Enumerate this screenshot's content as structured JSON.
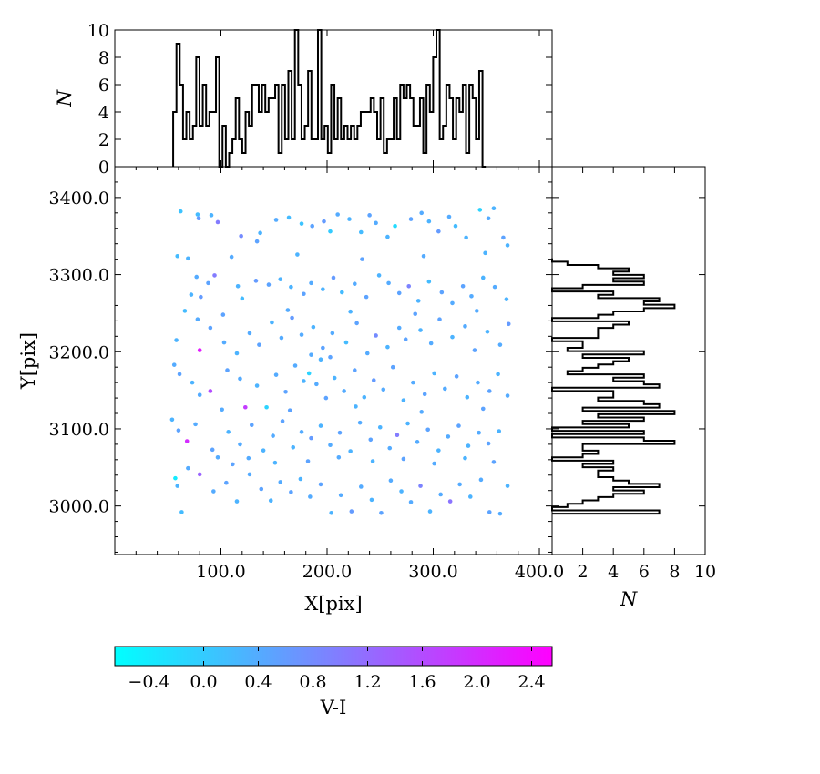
{
  "chart_data": {
    "type": "scatter",
    "xlabel": "X[pix]",
    "ylabel": "Y[pix]",
    "xlim": [
      0,
      412
    ],
    "ylim": [
      2937,
      3440
    ],
    "x_ticks": [
      "100.0",
      "200.0",
      "300.0",
      "400.0"
    ],
    "y_ticks": [
      "3000.0",
      "3100.0",
      "3200.0",
      "3300.0",
      "3400.0"
    ],
    "colorbar": {
      "label": "V-I",
      "range": [
        -0.65,
        2.55
      ],
      "ticks": [
        "−0.4",
        "0.0",
        "0.4",
        "0.8",
        "1.2",
        "1.6",
        "2.0",
        "2.4"
      ],
      "colors": [
        "#00ffff",
        "#ff00ff"
      ]
    },
    "hist_top": {
      "ylabel": "N",
      "ylim": [
        0,
        10
      ],
      "ticks": [
        "0",
        "2",
        "4",
        "6",
        "8",
        "10"
      ],
      "bin_start": 55,
      "bin_width": 3.1,
      "counts": [
        4,
        9,
        6,
        2,
        4,
        2,
        3,
        8,
        3,
        6,
        3,
        4,
        4,
        8,
        0,
        3,
        0,
        1,
        2,
        5,
        2,
        1,
        4,
        3,
        6,
        6,
        4,
        6,
        4,
        5,
        5,
        6,
        1,
        6,
        2,
        7,
        2,
        10,
        6,
        2,
        3,
        7,
        2,
        2,
        10,
        2,
        3,
        1,
        6,
        2,
        5,
        2,
        3,
        2,
        3,
        2,
        3,
        4,
        4,
        4,
        5,
        4,
        2,
        5,
        1,
        2,
        2,
        5,
        2,
        6,
        5,
        6,
        5,
        3,
        3,
        5,
        1,
        6,
        4,
        8,
        10,
        2,
        3,
        6,
        5,
        2,
        5,
        4,
        6,
        1,
        6,
        5,
        2,
        7,
        0
      ]
    },
    "hist_right": {
      "xlabel": "N",
      "xlim": [
        0,
        10
      ],
      "ticks": [
        "2",
        "4",
        "6",
        "8",
        "10"
      ],
      "bin_start": 2990,
      "bin_width": 4.3,
      "counts": [
        7,
        0,
        1,
        2,
        3,
        4,
        6,
        4,
        7,
        5,
        4,
        3,
        3,
        4,
        2,
        4,
        0,
        2,
        3,
        2,
        2,
        8,
        6,
        0,
        6,
        0,
        5,
        2,
        6,
        3,
        8,
        2,
        7,
        6,
        3,
        4,
        4,
        0,
        7,
        6,
        4,
        6,
        1,
        2,
        3,
        4,
        5,
        2,
        6,
        1,
        2,
        2,
        0,
        3,
        3,
        3,
        4,
        5,
        0,
        3,
        4,
        6,
        8,
        6,
        7,
        3,
        4,
        0,
        2,
        6,
        4,
        6,
        4,
        5,
        3,
        1,
        0,
        0,
        0,
        0,
        0,
        0,
        0,
        0,
        0,
        0,
        0,
        0,
        0,
        0,
        0,
        0,
        0,
        0,
        0,
        0
      ]
    },
    "points": [
      {
        "x": 62,
        "y": 3382,
        "c": 0.1
      },
      {
        "x": 78,
        "y": 3378,
        "c": 0.2
      },
      {
        "x": 79,
        "y": 3373,
        "c": 0.6
      },
      {
        "x": 91,
        "y": 3377,
        "c": 0.3
      },
      {
        "x": 97,
        "y": 3368,
        "c": 1.0
      },
      {
        "x": 59,
        "y": 3324,
        "c": 0.2
      },
      {
        "x": 69,
        "y": 3321,
        "c": 0.3
      },
      {
        "x": 119,
        "y": 3350,
        "c": 0.8
      },
      {
        "x": 137,
        "y": 3354,
        "c": 0.3
      },
      {
        "x": 134,
        "y": 3343,
        "c": 0.5
      },
      {
        "x": 152,
        "y": 3371,
        "c": 0.4
      },
      {
        "x": 164,
        "y": 3374,
        "c": 0.2
      },
      {
        "x": 176,
        "y": 3366,
        "c": 0.1
      },
      {
        "x": 186,
        "y": 3363,
        "c": 0.5
      },
      {
        "x": 197,
        "y": 3369,
        "c": 0.6
      },
      {
        "x": 203,
        "y": 3356,
        "c": 0.0
      },
      {
        "x": 210,
        "y": 3378,
        "c": 0.4
      },
      {
        "x": 221,
        "y": 3372,
        "c": 0.3
      },
      {
        "x": 232,
        "y": 3355,
        "c": 0.2
      },
      {
        "x": 240,
        "y": 3377,
        "c": 0.5
      },
      {
        "x": 246,
        "y": 3367,
        "c": 0.4
      },
      {
        "x": 257,
        "y": 3349,
        "c": 0.3
      },
      {
        "x": 264,
        "y": 3363,
        "c": -0.2
      },
      {
        "x": 279,
        "y": 3372,
        "c": 0.5
      },
      {
        "x": 289,
        "y": 3380,
        "c": 0.4
      },
      {
        "x": 296,
        "y": 3369,
        "c": 0.3
      },
      {
        "x": 305,
        "y": 3356,
        "c": 0.6
      },
      {
        "x": 315,
        "y": 3375,
        "c": 0.4
      },
      {
        "x": 321,
        "y": 3363,
        "c": 0.2
      },
      {
        "x": 331,
        "y": 3348,
        "c": 0.3
      },
      {
        "x": 344,
        "y": 3384,
        "c": -0.1
      },
      {
        "x": 352,
        "y": 3373,
        "c": 0.4
      },
      {
        "x": 357,
        "y": 3386,
        "c": 0.3
      },
      {
        "x": 366,
        "y": 3348,
        "c": 0.5
      },
      {
        "x": 370,
        "y": 3338,
        "c": 0.3
      },
      {
        "x": 77,
        "y": 3297,
        "c": 0.4
      },
      {
        "x": 88,
        "y": 3289,
        "c": 0.5
      },
      {
        "x": 94,
        "y": 3299,
        "c": 1.0
      },
      {
        "x": 72,
        "y": 3274,
        "c": 0.3
      },
      {
        "x": 66,
        "y": 3253,
        "c": 0.2
      },
      {
        "x": 81,
        "y": 3271,
        "c": 0.6
      },
      {
        "x": 116,
        "y": 3285,
        "c": 0.3
      },
      {
        "x": 120,
        "y": 3269,
        "c": 0.2
      },
      {
        "x": 133,
        "y": 3292,
        "c": 0.6
      },
      {
        "x": 145,
        "y": 3287,
        "c": 0.5
      },
      {
        "x": 156,
        "y": 3294,
        "c": 0.3
      },
      {
        "x": 166,
        "y": 3284,
        "c": 0.3
      },
      {
        "x": 178,
        "y": 3275,
        "c": 0.5
      },
      {
        "x": 185,
        "y": 3289,
        "c": 0.4
      },
      {
        "x": 196,
        "y": 3281,
        "c": 0.3
      },
      {
        "x": 206,
        "y": 3296,
        "c": 0.6
      },
      {
        "x": 214,
        "y": 3277,
        "c": 0.2
      },
      {
        "x": 226,
        "y": 3288,
        "c": 0.4
      },
      {
        "x": 237,
        "y": 3271,
        "c": 0.5
      },
      {
        "x": 249,
        "y": 3299,
        "c": 0.3
      },
      {
        "x": 258,
        "y": 3289,
        "c": 0.4
      },
      {
        "x": 268,
        "y": 3276,
        "c": 0.5
      },
      {
        "x": 277,
        "y": 3285,
        "c": 0.9
      },
      {
        "x": 286,
        "y": 3266,
        "c": 0.3
      },
      {
        "x": 296,
        "y": 3291,
        "c": 0.2
      },
      {
        "x": 308,
        "y": 3277,
        "c": 0.5
      },
      {
        "x": 318,
        "y": 3263,
        "c": 0.4
      },
      {
        "x": 328,
        "y": 3285,
        "c": 0.5
      },
      {
        "x": 336,
        "y": 3272,
        "c": 0.4
      },
      {
        "x": 347,
        "y": 3296,
        "c": 0.3
      },
      {
        "x": 358,
        "y": 3284,
        "c": 0.4
      },
      {
        "x": 369,
        "y": 3268,
        "c": 0.3
      },
      {
        "x": 78,
        "y": 3242,
        "c": 0.4
      },
      {
        "x": 90,
        "y": 3231,
        "c": 0.5
      },
      {
        "x": 58,
        "y": 3215,
        "c": 0.3
      },
      {
        "x": 80,
        "y": 3202,
        "c": 2.2
      },
      {
        "x": 103,
        "y": 3212,
        "c": 0.4
      },
      {
        "x": 115,
        "y": 3198,
        "c": 0.3
      },
      {
        "x": 127,
        "y": 3224,
        "c": 0.4
      },
      {
        "x": 136,
        "y": 3209,
        "c": 0.5
      },
      {
        "x": 148,
        "y": 3238,
        "c": 0.3
      },
      {
        "x": 157,
        "y": 3218,
        "c": 0.4
      },
      {
        "x": 167,
        "y": 3244,
        "c": 0.6
      },
      {
        "x": 176,
        "y": 3222,
        "c": 0.4
      },
      {
        "x": 187,
        "y": 3232,
        "c": 0.3
      },
      {
        "x": 196,
        "y": 3205,
        "c": 0.5
      },
      {
        "x": 205,
        "y": 3224,
        "c": 0.4
      },
      {
        "x": 218,
        "y": 3212,
        "c": 0.2
      },
      {
        "x": 228,
        "y": 3237,
        "c": 0.5
      },
      {
        "x": 238,
        "y": 3198,
        "c": 0.4
      },
      {
        "x": 246,
        "y": 3221,
        "c": 0.8
      },
      {
        "x": 257,
        "y": 3206,
        "c": 0.3
      },
      {
        "x": 268,
        "y": 3231,
        "c": 0.4
      },
      {
        "x": 274,
        "y": 3216,
        "c": 0.5
      },
      {
        "x": 288,
        "y": 3228,
        "c": 0.3
      },
      {
        "x": 298,
        "y": 3211,
        "c": 0.4
      },
      {
        "x": 306,
        "y": 3242,
        "c": 0.5
      },
      {
        "x": 318,
        "y": 3219,
        "c": 0.3
      },
      {
        "x": 330,
        "y": 3233,
        "c": 0.4
      },
      {
        "x": 339,
        "y": 3202,
        "c": 0.5
      },
      {
        "x": 351,
        "y": 3226,
        "c": 0.3
      },
      {
        "x": 363,
        "y": 3209,
        "c": 0.4
      },
      {
        "x": 371,
        "y": 3236,
        "c": 0.6
      },
      {
        "x": 56,
        "y": 3183,
        "c": 0.4
      },
      {
        "x": 61,
        "y": 3171,
        "c": 0.5
      },
      {
        "x": 73,
        "y": 3160,
        "c": 0.3
      },
      {
        "x": 90,
        "y": 3149,
        "c": 1.6
      },
      {
        "x": 80,
        "y": 3144,
        "c": 0.4
      },
      {
        "x": 106,
        "y": 3176,
        "c": 0.5
      },
      {
        "x": 118,
        "y": 3165,
        "c": 0.4
      },
      {
        "x": 123,
        "y": 3128,
        "c": 1.8
      },
      {
        "x": 134,
        "y": 3156,
        "c": 0.3
      },
      {
        "x": 143,
        "y": 3128,
        "c": -0.1
      },
      {
        "x": 152,
        "y": 3170,
        "c": 0.4
      },
      {
        "x": 161,
        "y": 3148,
        "c": 0.5
      },
      {
        "x": 170,
        "y": 3182,
        "c": 0.4
      },
      {
        "x": 178,
        "y": 3162,
        "c": 0.3
      },
      {
        "x": 183,
        "y": 3172,
        "c": -0.1
      },
      {
        "x": 190,
        "y": 3158,
        "c": 0.4
      },
      {
        "x": 199,
        "y": 3140,
        "c": 0.5
      },
      {
        "x": 207,
        "y": 3166,
        "c": 0.3
      },
      {
        "x": 216,
        "y": 3149,
        "c": 0.4
      },
      {
        "x": 226,
        "y": 3176,
        "c": 0.5
      },
      {
        "x": 235,
        "y": 3141,
        "c": 0.3
      },
      {
        "x": 244,
        "y": 3163,
        "c": 0.6
      },
      {
        "x": 253,
        "y": 3151,
        "c": 0.4
      },
      {
        "x": 262,
        "y": 3180,
        "c": 0.5
      },
      {
        "x": 272,
        "y": 3137,
        "c": 0.3
      },
      {
        "x": 281,
        "y": 3160,
        "c": 0.4
      },
      {
        "x": 292,
        "y": 3145,
        "c": 0.5
      },
      {
        "x": 301,
        "y": 3172,
        "c": 0.3
      },
      {
        "x": 311,
        "y": 3152,
        "c": 0.4
      },
      {
        "x": 322,
        "y": 3168,
        "c": 0.5
      },
      {
        "x": 332,
        "y": 3141,
        "c": 0.3
      },
      {
        "x": 342,
        "y": 3160,
        "c": 0.4
      },
      {
        "x": 353,
        "y": 3149,
        "c": 0.5
      },
      {
        "x": 361,
        "y": 3171,
        "c": 0.3
      },
      {
        "x": 370,
        "y": 3143,
        "c": 0.4
      },
      {
        "x": 54,
        "y": 3112,
        "c": 0.3
      },
      {
        "x": 60,
        "y": 3098,
        "c": 0.5
      },
      {
        "x": 68,
        "y": 3084,
        "c": 2.0
      },
      {
        "x": 76,
        "y": 3106,
        "c": 0.4
      },
      {
        "x": 92,
        "y": 3073,
        "c": 0.5
      },
      {
        "x": 107,
        "y": 3096,
        "c": 0.3
      },
      {
        "x": 118,
        "y": 3080,
        "c": 0.4
      },
      {
        "x": 129,
        "y": 3105,
        "c": 0.5
      },
      {
        "x": 140,
        "y": 3072,
        "c": 0.3
      },
      {
        "x": 149,
        "y": 3091,
        "c": 0.4
      },
      {
        "x": 158,
        "y": 3110,
        "c": 0.5
      },
      {
        "x": 168,
        "y": 3076,
        "c": 0.3
      },
      {
        "x": 176,
        "y": 3096,
        "c": 0.4
      },
      {
        "x": 185,
        "y": 3088,
        "c": 0.6
      },
      {
        "x": 194,
        "y": 3104,
        "c": 0.3
      },
      {
        "x": 203,
        "y": 3079,
        "c": 0.4
      },
      {
        "x": 212,
        "y": 3095,
        "c": 0.5
      },
      {
        "x": 222,
        "y": 3071,
        "c": 0.3
      },
      {
        "x": 231,
        "y": 3108,
        "c": 0.4
      },
      {
        "x": 241,
        "y": 3086,
        "c": 0.5
      },
      {
        "x": 250,
        "y": 3102,
        "c": 0.3
      },
      {
        "x": 259,
        "y": 3075,
        "c": 0.4
      },
      {
        "x": 266,
        "y": 3092,
        "c": 1.0
      },
      {
        "x": 276,
        "y": 3107,
        "c": 0.3
      },
      {
        "x": 285,
        "y": 3083,
        "c": 0.4
      },
      {
        "x": 295,
        "y": 3099,
        "c": 0.5
      },
      {
        "x": 305,
        "y": 3072,
        "c": 0.3
      },
      {
        "x": 314,
        "y": 3090,
        "c": 0.4
      },
      {
        "x": 324,
        "y": 3104,
        "c": 0.5
      },
      {
        "x": 333,
        "y": 3078,
        "c": 0.3
      },
      {
        "x": 343,
        "y": 3095,
        "c": 0.4
      },
      {
        "x": 352,
        "y": 3081,
        "c": 0.5
      },
      {
        "x": 362,
        "y": 3097,
        "c": 0.3
      },
      {
        "x": 57,
        "y": 3036,
        "c": -0.4
      },
      {
        "x": 59,
        "y": 3026,
        "c": 0.3
      },
      {
        "x": 69,
        "y": 3049,
        "c": 0.4
      },
      {
        "x": 80,
        "y": 3041,
        "c": 1.3
      },
      {
        "x": 93,
        "y": 3019,
        "c": 0.4
      },
      {
        "x": 105,
        "y": 3030,
        "c": 0.5
      },
      {
        "x": 115,
        "y": 3006,
        "c": 0.3
      },
      {
        "x": 127,
        "y": 3041,
        "c": 0.4
      },
      {
        "x": 138,
        "y": 3022,
        "c": 0.5
      },
      {
        "x": 147,
        "y": 3007,
        "c": 0.3
      },
      {
        "x": 156,
        "y": 3031,
        "c": 0.4
      },
      {
        "x": 166,
        "y": 3018,
        "c": 0.5
      },
      {
        "x": 175,
        "y": 3035,
        "c": 0.3
      },
      {
        "x": 184,
        "y": 3012,
        "c": 0.4
      },
      {
        "x": 194,
        "y": 3028,
        "c": 0.5
      },
      {
        "x": 204,
        "y": 2991,
        "c": 0.3
      },
      {
        "x": 213,
        "y": 3014,
        "c": 0.4
      },
      {
        "x": 223,
        "y": 2993,
        "c": 0.6
      },
      {
        "x": 232,
        "y": 3025,
        "c": 0.4
      },
      {
        "x": 242,
        "y": 3008,
        "c": 0.3
      },
      {
        "x": 251,
        "y": 2991,
        "c": 0.5
      },
      {
        "x": 260,
        "y": 3033,
        "c": 0.4
      },
      {
        "x": 270,
        "y": 3019,
        "c": 0.3
      },
      {
        "x": 279,
        "y": 3005,
        "c": 0.4
      },
      {
        "x": 288,
        "y": 3026,
        "c": 0.9
      },
      {
        "x": 297,
        "y": 2993,
        "c": 0.3
      },
      {
        "x": 307,
        "y": 3015,
        "c": 0.4
      },
      {
        "x": 316,
        "y": 3006,
        "c": 1.1
      },
      {
        "x": 325,
        "y": 3028,
        "c": 0.4
      },
      {
        "x": 335,
        "y": 3012,
        "c": 0.3
      },
      {
        "x": 345,
        "y": 3034,
        "c": 0.4
      },
      {
        "x": 353,
        "y": 2992,
        "c": 0.5
      },
      {
        "x": 363,
        "y": 2990,
        "c": 0.4
      },
      {
        "x": 370,
        "y": 3026,
        "c": 0.3
      },
      {
        "x": 63,
        "y": 2992,
        "c": 0.2
      },
      {
        "x": 97,
        "y": 3063,
        "c": 0.4
      },
      {
        "x": 111,
        "y": 3054,
        "c": 0.5
      },
      {
        "x": 126,
        "y": 3062,
        "c": 0.4
      },
      {
        "x": 151,
        "y": 3056,
        "c": 0.3
      },
      {
        "x": 182,
        "y": 3058,
        "c": 0.5
      },
      {
        "x": 211,
        "y": 3063,
        "c": 0.4
      },
      {
        "x": 243,
        "y": 3058,
        "c": 0.3
      },
      {
        "x": 272,
        "y": 3061,
        "c": 0.5
      },
      {
        "x": 301,
        "y": 3055,
        "c": 0.4
      },
      {
        "x": 330,
        "y": 3062,
        "c": 0.3
      },
      {
        "x": 357,
        "y": 3057,
        "c": 0.5
      },
      {
        "x": 101,
        "y": 3125,
        "c": 0.4
      },
      {
        "x": 165,
        "y": 3124,
        "c": 0.5
      },
      {
        "x": 227,
        "y": 3129,
        "c": 0.3
      },
      {
        "x": 289,
        "y": 3122,
        "c": 0.4
      },
      {
        "x": 347,
        "y": 3126,
        "c": 0.5
      },
      {
        "x": 110,
        "y": 3323,
        "c": 0.4
      },
      {
        "x": 172,
        "y": 3326,
        "c": 0.3
      },
      {
        "x": 233,
        "y": 3320,
        "c": 0.5
      },
      {
        "x": 291,
        "y": 3324,
        "c": 0.4
      },
      {
        "x": 349,
        "y": 3328,
        "c": 0.3
      },
      {
        "x": 102,
        "y": 3248,
        "c": 0.5
      },
      {
        "x": 163,
        "y": 3254,
        "c": 0.4
      },
      {
        "x": 222,
        "y": 3252,
        "c": 0.3
      },
      {
        "x": 283,
        "y": 3249,
        "c": 0.5
      },
      {
        "x": 341,
        "y": 3253,
        "c": 0.4
      },
      {
        "x": 194,
        "y": 3190,
        "c": 0.3
      },
      {
        "x": 203,
        "y": 3193,
        "c": 0.5
      },
      {
        "x": 185,
        "y": 3196,
        "c": 0.4
      }
    ]
  }
}
